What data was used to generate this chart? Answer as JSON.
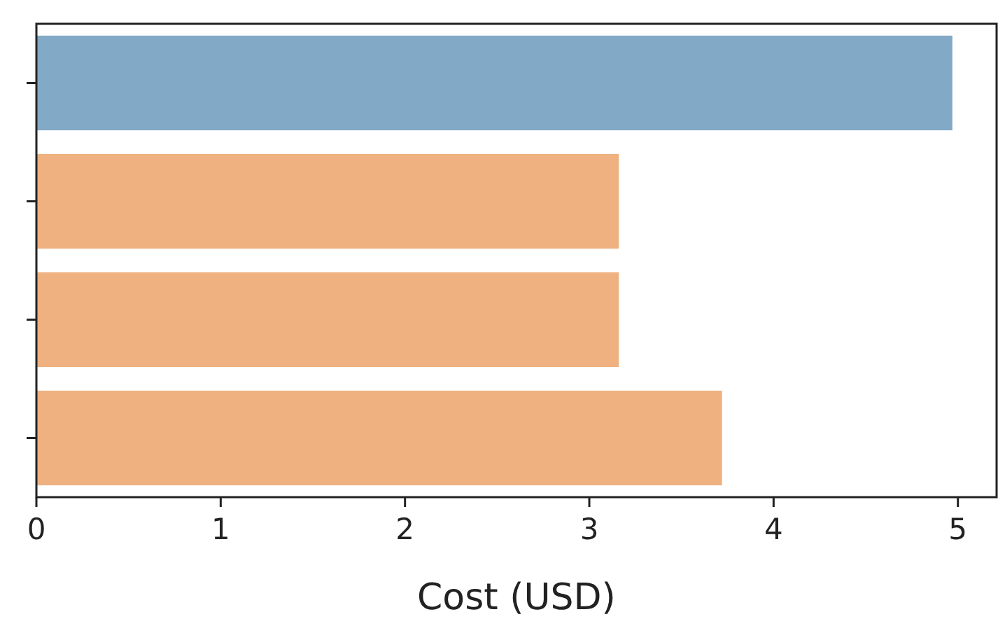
{
  "chart_data": {
    "type": "bar",
    "orientation": "horizontal",
    "xlabel": "Cost (USD)",
    "categories": [
      null,
      null,
      null,
      null
    ],
    "values": [
      4.97,
      3.16,
      3.16,
      3.72
    ],
    "colors": [
      "#82aac6",
      "#eeb17f",
      "#eeb17f",
      "#eeb17f"
    ],
    "xlim": [
      0,
      5.21
    ],
    "xticks": [
      0,
      1,
      2,
      3,
      4,
      5
    ]
  }
}
